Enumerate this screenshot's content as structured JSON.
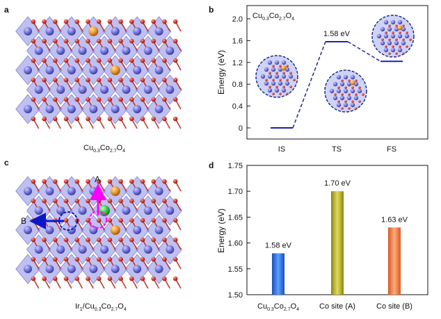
{
  "panels": {
    "a": {
      "label": "a",
      "caption_main": "Cu",
      "caption_sub1": "0.3",
      "caption_mid": "Co",
      "caption_sub2": "2.7",
      "caption_end": "O",
      "caption_sub3": "4"
    },
    "b": {
      "label": "b"
    },
    "c": {
      "label": "c",
      "caption_main": "Ir",
      "caption_sub0": "1",
      "caption_slash": "/Cu",
      "caption_sub1": "0.3",
      "caption_mid": "Co",
      "caption_sub2": "2.7",
      "caption_end": "O",
      "caption_sub3": "4",
      "arrow_a": "A",
      "arrow_b": "B"
    },
    "d": {
      "label": "d"
    }
  },
  "colors": {
    "octa": "#8a8ce8",
    "co_atom": "#6f6fd8",
    "o_atom": "#d23a2f",
    "cu_atom": "#e8962a",
    "ir_atom": "#39c24a",
    "bar1": "#2e6fe0",
    "bar2": "#b8b31a",
    "bar3": "#f07a3c"
  },
  "chart_data": [
    {
      "type": "line",
      "title": "Cu0.3Co2.7O4",
      "title_parts": {
        "a": "Cu",
        "b": "0.3",
        "c": "Co",
        "d": "2.7",
        "e": "O",
        "f": "4"
      },
      "categories": [
        "IS",
        "TS",
        "FS"
      ],
      "values": [
        0,
        1.58,
        1.22
      ],
      "annotation": "1.58 eV",
      "ylabel": "Energy (eV)",
      "ylim": [
        0,
        2.0
      ],
      "yticks": [
        "0",
        "0.4",
        "0.8",
        "1.2",
        "1.6",
        "2.0"
      ]
    },
    {
      "type": "bar",
      "categories": [
        "Cu0.3Co2.7O4",
        "Co site (A)",
        "Co site (B)"
      ],
      "cat0_parts": {
        "a": "Cu",
        "b": "0.3",
        "c": "Co",
        "d": "2.7",
        "e": "O",
        "f": "4"
      },
      "values": [
        1.58,
        1.7,
        1.63
      ],
      "labels": [
        "1.58 eV",
        "1.70 eV",
        "1.63 eV"
      ],
      "ylabel": "Energy (eV)",
      "ylim": [
        1.5,
        1.75
      ],
      "yticks": [
        "1.50",
        "1.55",
        "1.60",
        "1.65",
        "1.70",
        "1.75"
      ]
    }
  ]
}
